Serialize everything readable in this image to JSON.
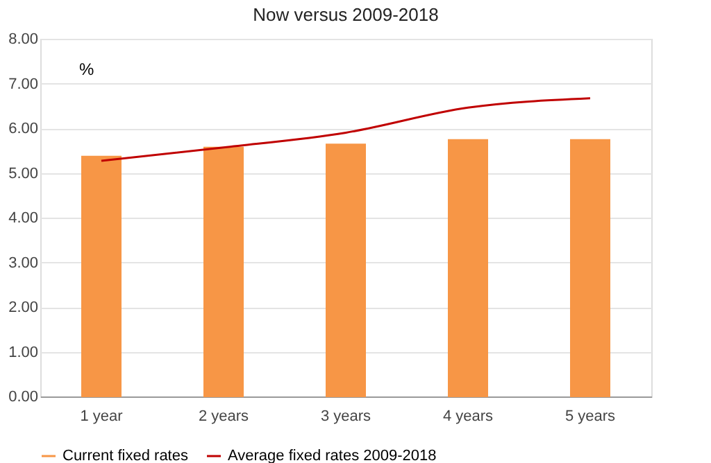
{
  "chart_data": {
    "type": "bar",
    "title": "Now versus 2009-2018",
    "categories": [
      "1 year",
      "2 years",
      "3 years",
      "4 years",
      "5 years"
    ],
    "series": [
      {
        "name": "Current fixed rates",
        "color": "#f79646",
        "values": [
          5.37,
          5.57,
          5.64,
          5.74,
          5.74
        ]
      },
      {
        "name": "Average fixed rates 2009-2018",
        "color": "#c00000",
        "type": "line",
        "values": [
          5.27,
          5.57,
          5.9,
          6.46,
          6.67
        ]
      }
    ],
    "ylim": [
      0,
      8
    ],
    "yticks": [
      {
        "value": 0,
        "label": "0.00"
      },
      {
        "value": 1,
        "label": "1.00"
      },
      {
        "value": 2,
        "label": "2.00"
      },
      {
        "value": 3,
        "label": "3.00"
      },
      {
        "value": 4,
        "label": "4.00"
      },
      {
        "value": 5,
        "label": "5.00"
      },
      {
        "value": 6,
        "label": "6.00"
      },
      {
        "value": 7,
        "label": "7.00"
      },
      {
        "value": 8,
        "label": "8.00"
      }
    ],
    "annotations": [
      "%"
    ],
    "grid": "y",
    "legend": "bottom"
  }
}
